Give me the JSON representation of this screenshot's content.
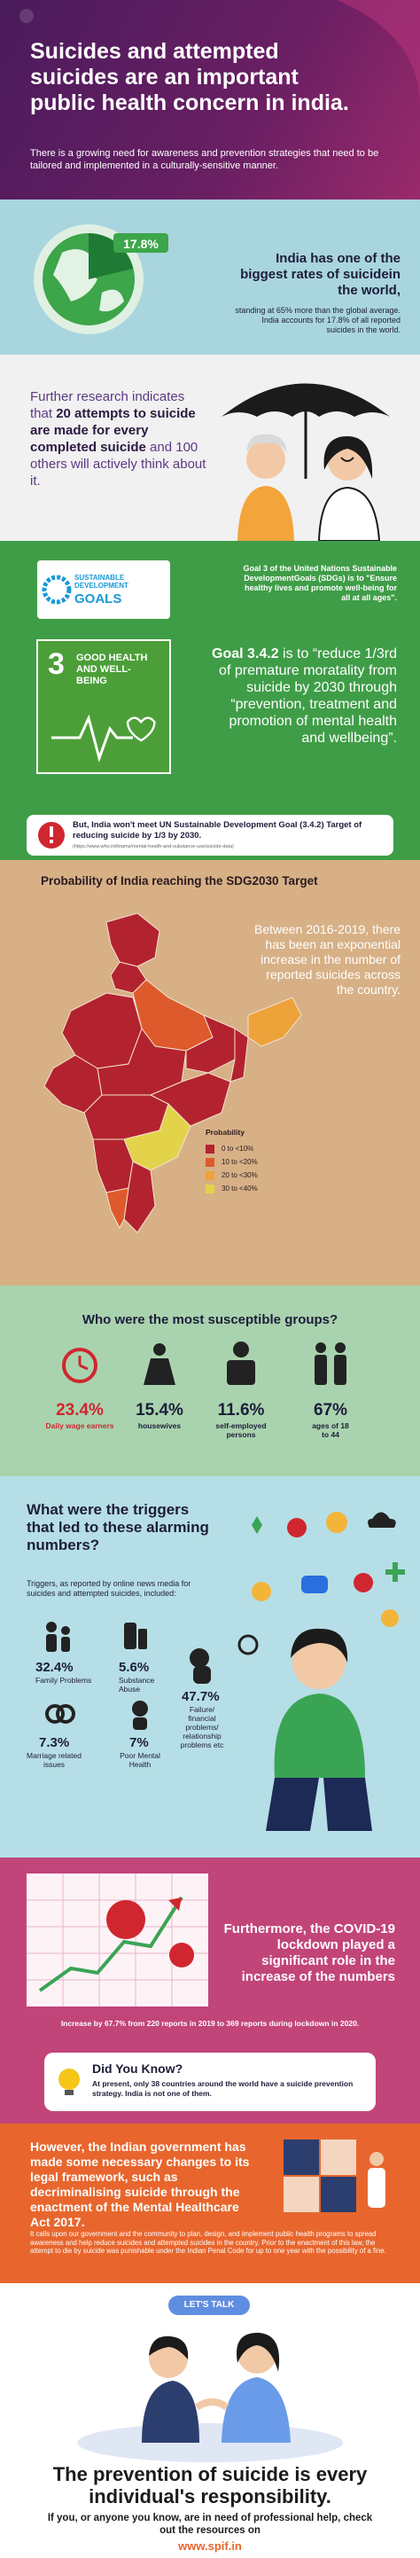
{
  "header": {
    "title": "Suicides and attempted suicides are an important public health concern in india.",
    "subtitle": "There is a growing need for awareness and prevention strategies that need to be tailored and implemented in a culturally-sensitive manner."
  },
  "global": {
    "percent": "17.8%",
    "heading": "India has one of the biggest rates of suicidein the world,",
    "body": "standing at 65% more than the global average. India accounts for 17.8% of all reported suicides in the world."
  },
  "research": {
    "lead": "Further research indicates that",
    "emphasis": "20 attempts to suicide are made for every completed suicide",
    "tail": "and 100 others will actively think about it."
  },
  "sdg": {
    "logo_line1": "SUSTAINABLE DEVELOPMENT",
    "logo_line2": "GOALS",
    "goal_number": "3",
    "goal_name": "GOOD HEALTH AND WELL-BEING",
    "goal3_text": "Goal 3 of the United Nations Sustainable DevelopmentGoals (SDGs) is to \"Ensure healthy lives and promote well-being for all at all ages\".",
    "target_heading": "Goal 3.4.2",
    "target_text": "is to “reduce 1/3rd of premature moratality from suicide by 2030 through “prevention, treatment and promotion of mental health and wellbeing”."
  },
  "warning": {
    "text": "But, India won't meet UN Sustainable Development Goal (3.4.2) Target of reducing suicide by 1/3 by 2030.",
    "source": "(https://www.who.int/teams/mental-health-and-substance-use/suicide-data)"
  },
  "map": {
    "title": "Probability of India reaching the SDG2030 Target",
    "text": "Between 2016-2019, there has been an exponential increase in the number of reported suicides across the country.",
    "legend_title": "Probability",
    "legend": [
      {
        "label": "0 to <10%",
        "color": "#b3232f"
      },
      {
        "label": "10 to <20%",
        "color": "#de5a2c"
      },
      {
        "label": "20 to <30%",
        "color": "#eea23a"
      },
      {
        "label": "30 to <40%",
        "color": "#e3d34a"
      }
    ]
  },
  "groups": {
    "title": "Who were the most susceptible groups?",
    "items": [
      {
        "value": "23.4%",
        "label": "Daily wage earners"
      },
      {
        "value": "15.4%",
        "label": "housewives"
      },
      {
        "value": "11.6%",
        "label": "self-employed persons"
      },
      {
        "value": "67%",
        "label": "ages of 18 to 44"
      }
    ]
  },
  "triggers": {
    "title": "What were the triggers that led to these alarming numbers?",
    "intro": "Triggers, as reported by online news media for suicides and attempted suicides, included:",
    "items": [
      {
        "value": "32.4%",
        "label": "Family Problems"
      },
      {
        "value": "5.6%",
        "label": "Substance Abuse"
      },
      {
        "value": "47.7%",
        "label": "Failure/ financial problems/ relationship problems etc"
      },
      {
        "value": "7.3%",
        "label": "Marriage related issues"
      },
      {
        "value": "7%",
        "label": "Poor Mental Health"
      }
    ]
  },
  "covid": {
    "text": "Furthermore, the COVID-19 lockdown played a significant role in the increase of the numbers",
    "caption": "Increase by 67.7% from 220 reports in 2019 to 369 reports during lockdown in 2020."
  },
  "did_you_know": {
    "title": "Did You Know?",
    "text": "At present, only 38 countries around the world have a suicide prevention strategy. India is not one of them."
  },
  "legal": {
    "heading": "However, the Indian government has made some necessary changes to its legal framework, such as decriminalising suicide through the enactment of the Mental Healthcare Act 2017.",
    "body": "It calls upon our government and the community to plan, design, and implement public health programs to spread awareness and help reduce suicides and attempted suicides in the country. Prior to the enactment of this law, the attempt to die by suicide was punishable under the Indian Penal Code for up to one year with the possibility of a fine."
  },
  "closing": {
    "badge": "LET'S TALK",
    "headline": "The prevention of suicide is every individual's responsibility.",
    "subtext": "If you, or anyone you know, are in need of professional help, check out the resources on",
    "url": "www.spif.in"
  }
}
